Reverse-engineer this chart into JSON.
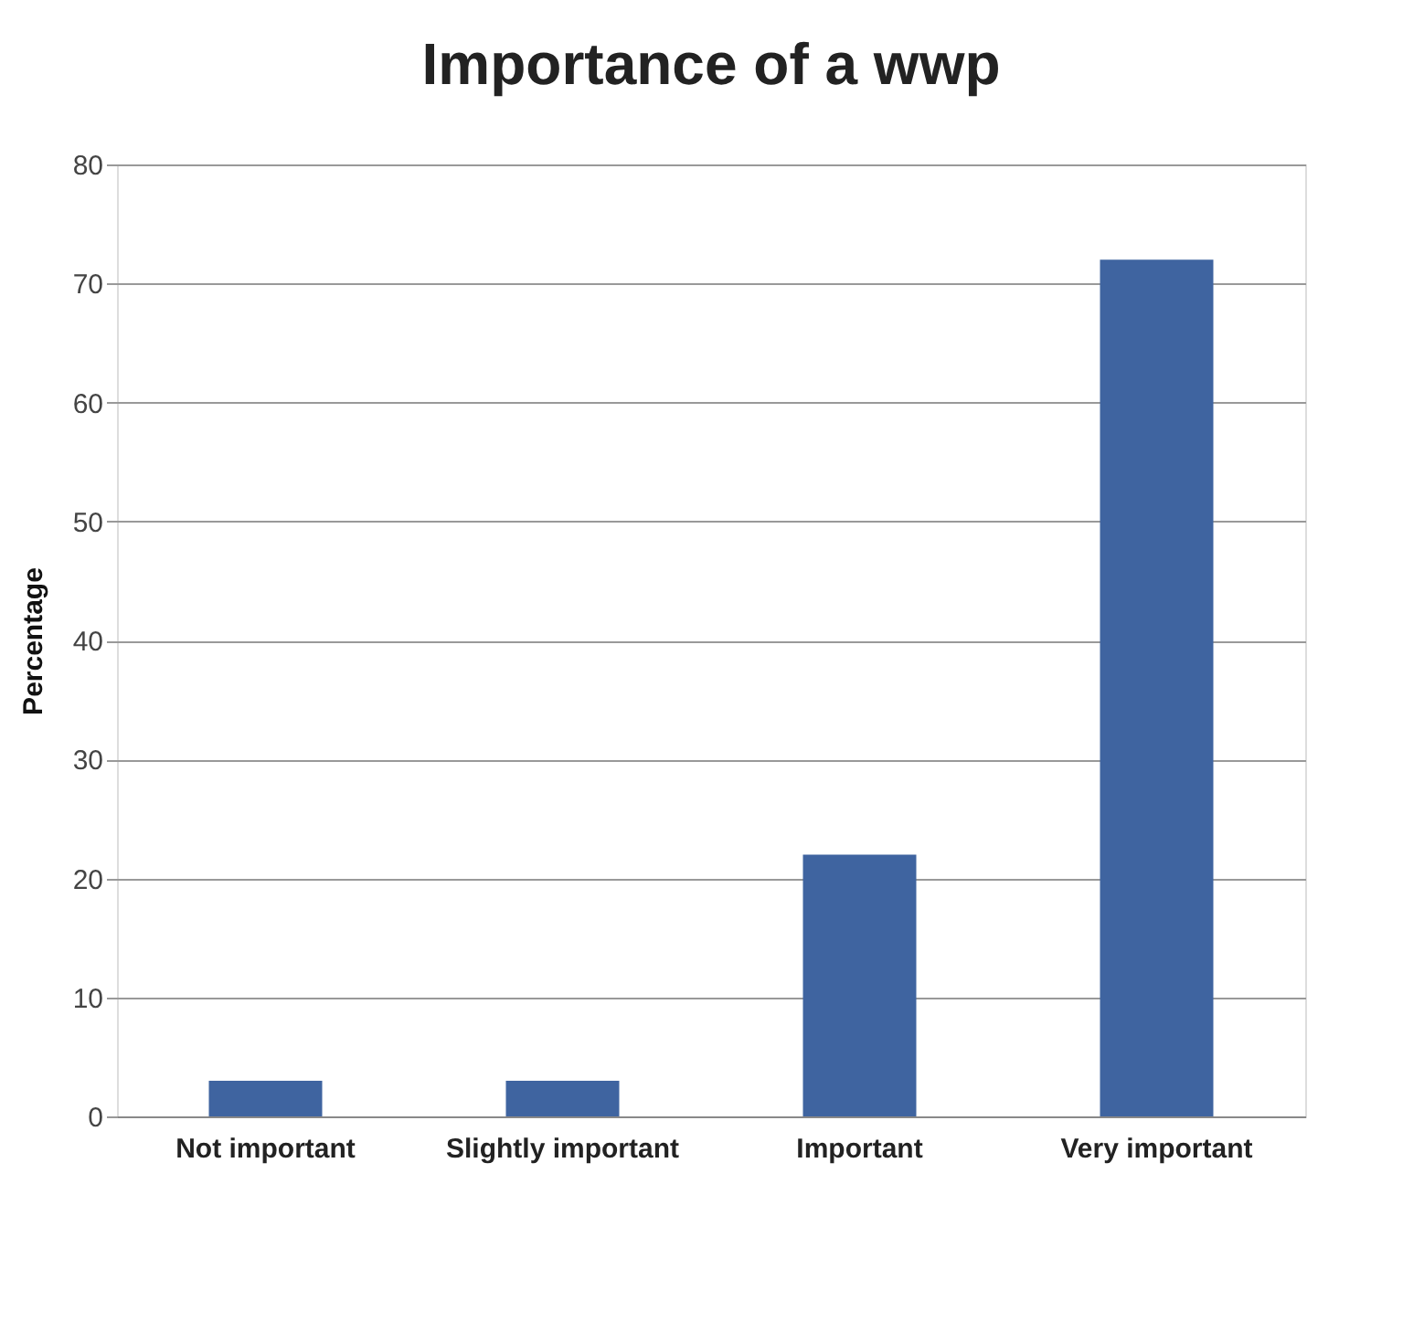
{
  "chart_data": {
    "type": "bar",
    "title": "Importance of a wwp",
    "ylabel": "Percentage",
    "categories": [
      "Not important",
      "Slightly important",
      "Important",
      "Very important"
    ],
    "values": [
      3,
      3,
      22,
      72
    ],
    "color": "#3f64a0",
    "ylim": [
      0,
      80
    ],
    "yticks": [
      0,
      10,
      20,
      30,
      40,
      50,
      60,
      70,
      80
    ],
    "grid": "y"
  }
}
